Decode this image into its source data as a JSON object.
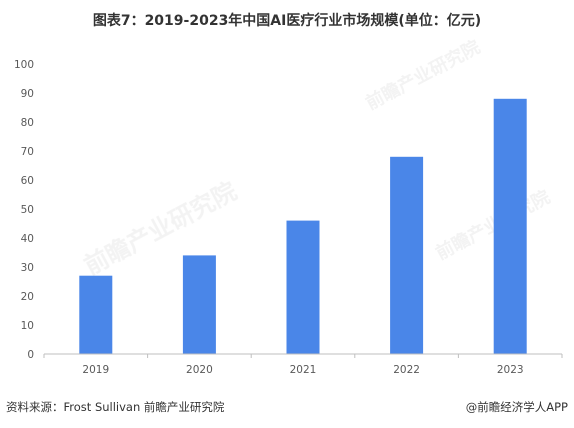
{
  "title": "图表7：2019-2023年中国AI医疗行业市场规模(单位：亿元)",
  "source": "资料来源：Frost Sullivan 前瞻产业研究院",
  "credit": "@前瞻经济学人APP",
  "watermark": "前瞻产业研究院",
  "colors": {
    "bar": "#4a86e8",
    "axis": "#bfbfbf",
    "text": "#595959"
  },
  "chart_data": {
    "type": "bar",
    "categories": [
      "2019",
      "2020",
      "2021",
      "2022",
      "2023"
    ],
    "values": [
      27,
      34,
      46,
      68,
      88
    ],
    "title": "图表7：2019-2023年中国AI医疗行业市场规模(单位：亿元)",
    "xlabel": "",
    "ylabel": "",
    "ylim": [
      0,
      100
    ],
    "yticks": [
      0,
      10,
      20,
      30,
      40,
      50,
      60,
      70,
      80,
      90,
      100
    ],
    "grid": false,
    "legend": "none"
  }
}
